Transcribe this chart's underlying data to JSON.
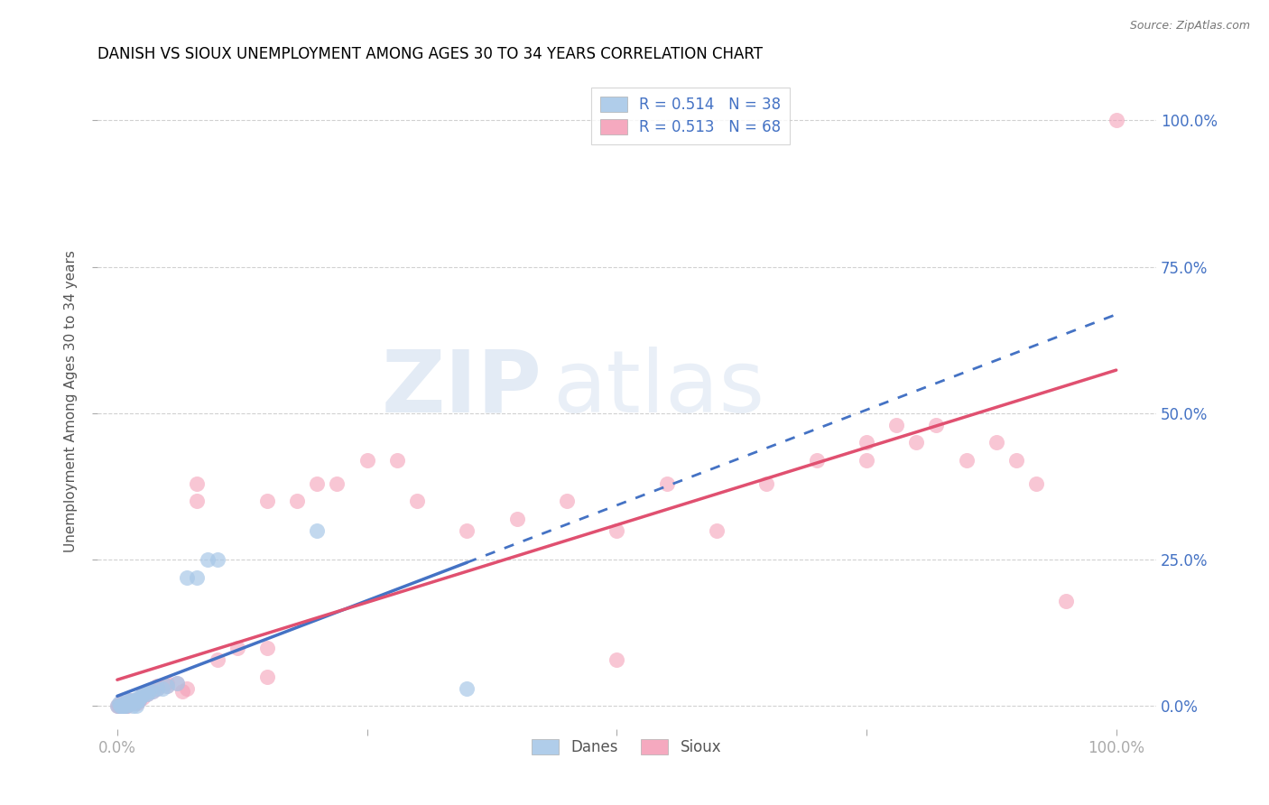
{
  "title": "DANISH VS SIOUX UNEMPLOYMENT AMONG AGES 30 TO 34 YEARS CORRELATION CHART",
  "source": "Source: ZipAtlas.com",
  "ylabel": "Unemployment Among Ages 30 to 34 years",
  "danes_color": "#a8c8e8",
  "sioux_color": "#f4a0b8",
  "danes_line_color": "#4472c4",
  "sioux_line_color": "#e05070",
  "watermark_zip": "ZIP",
  "watermark_atlas": "atlas",
  "danes_points": [
    [
      0.0,
      0.0
    ],
    [
      0.002,
      0.005
    ],
    [
      0.003,
      0.0
    ],
    [
      0.004,
      0.0
    ],
    [
      0.005,
      0.0
    ],
    [
      0.006,
      0.0
    ],
    [
      0.007,
      0.005
    ],
    [
      0.008,
      0.0
    ],
    [
      0.009,
      0.0
    ],
    [
      0.01,
      0.005
    ],
    [
      0.01,
      0.01
    ],
    [
      0.012,
      0.005
    ],
    [
      0.013,
      0.01
    ],
    [
      0.014,
      0.005
    ],
    [
      0.015,
      0.0
    ],
    [
      0.016,
      0.01
    ],
    [
      0.017,
      0.005
    ],
    [
      0.018,
      0.01
    ],
    [
      0.019,
      0.0
    ],
    [
      0.02,
      0.01
    ],
    [
      0.021,
      0.015
    ],
    [
      0.022,
      0.01
    ],
    [
      0.023,
      0.015
    ],
    [
      0.025,
      0.02
    ],
    [
      0.027,
      0.02
    ],
    [
      0.03,
      0.02
    ],
    [
      0.032,
      0.025
    ],
    [
      0.035,
      0.025
    ],
    [
      0.04,
      0.03
    ],
    [
      0.045,
      0.03
    ],
    [
      0.05,
      0.035
    ],
    [
      0.06,
      0.04
    ],
    [
      0.07,
      0.22
    ],
    [
      0.08,
      0.22
    ],
    [
      0.09,
      0.25
    ],
    [
      0.1,
      0.25
    ],
    [
      0.2,
      0.3
    ],
    [
      0.35,
      0.03
    ]
  ],
  "sioux_points": [
    [
      0.0,
      0.0
    ],
    [
      0.001,
      0.0
    ],
    [
      0.002,
      0.0
    ],
    [
      0.003,
      0.005
    ],
    [
      0.004,
      0.0
    ],
    [
      0.005,
      0.005
    ],
    [
      0.006,
      0.0
    ],
    [
      0.007,
      0.0
    ],
    [
      0.008,
      0.005
    ],
    [
      0.009,
      0.0
    ],
    [
      0.01,
      0.0
    ],
    [
      0.01,
      0.005
    ],
    [
      0.012,
      0.005
    ],
    [
      0.013,
      0.01
    ],
    [
      0.014,
      0.005
    ],
    [
      0.015,
      0.01
    ],
    [
      0.016,
      0.005
    ],
    [
      0.017,
      0.01
    ],
    [
      0.018,
      0.005
    ],
    [
      0.02,
      0.005
    ],
    [
      0.02,
      0.01
    ],
    [
      0.022,
      0.01
    ],
    [
      0.023,
      0.015
    ],
    [
      0.025,
      0.015
    ],
    [
      0.025,
      0.02
    ],
    [
      0.03,
      0.02
    ],
    [
      0.03,
      0.025
    ],
    [
      0.035,
      0.025
    ],
    [
      0.04,
      0.03
    ],
    [
      0.04,
      0.035
    ],
    [
      0.05,
      0.035
    ],
    [
      0.05,
      0.04
    ],
    [
      0.06,
      0.04
    ],
    [
      0.065,
      0.025
    ],
    [
      0.07,
      0.03
    ],
    [
      0.08,
      0.35
    ],
    [
      0.08,
      0.38
    ],
    [
      0.1,
      0.08
    ],
    [
      0.12,
      0.1
    ],
    [
      0.15,
      0.05
    ],
    [
      0.15,
      0.1
    ],
    [
      0.15,
      0.35
    ],
    [
      0.18,
      0.35
    ],
    [
      0.2,
      0.38
    ],
    [
      0.22,
      0.38
    ],
    [
      0.25,
      0.42
    ],
    [
      0.28,
      0.42
    ],
    [
      0.3,
      0.35
    ],
    [
      0.35,
      0.3
    ],
    [
      0.4,
      0.32
    ],
    [
      0.45,
      0.35
    ],
    [
      0.5,
      0.08
    ],
    [
      0.5,
      0.3
    ],
    [
      0.55,
      0.38
    ],
    [
      0.6,
      0.3
    ],
    [
      0.65,
      0.38
    ],
    [
      0.7,
      0.42
    ],
    [
      0.75,
      0.42
    ],
    [
      0.75,
      0.45
    ],
    [
      0.78,
      0.48
    ],
    [
      0.8,
      0.45
    ],
    [
      0.82,
      0.48
    ],
    [
      0.85,
      0.42
    ],
    [
      0.88,
      0.45
    ],
    [
      0.9,
      0.42
    ],
    [
      0.92,
      0.38
    ],
    [
      0.95,
      0.18
    ],
    [
      1.0,
      1.0
    ]
  ]
}
